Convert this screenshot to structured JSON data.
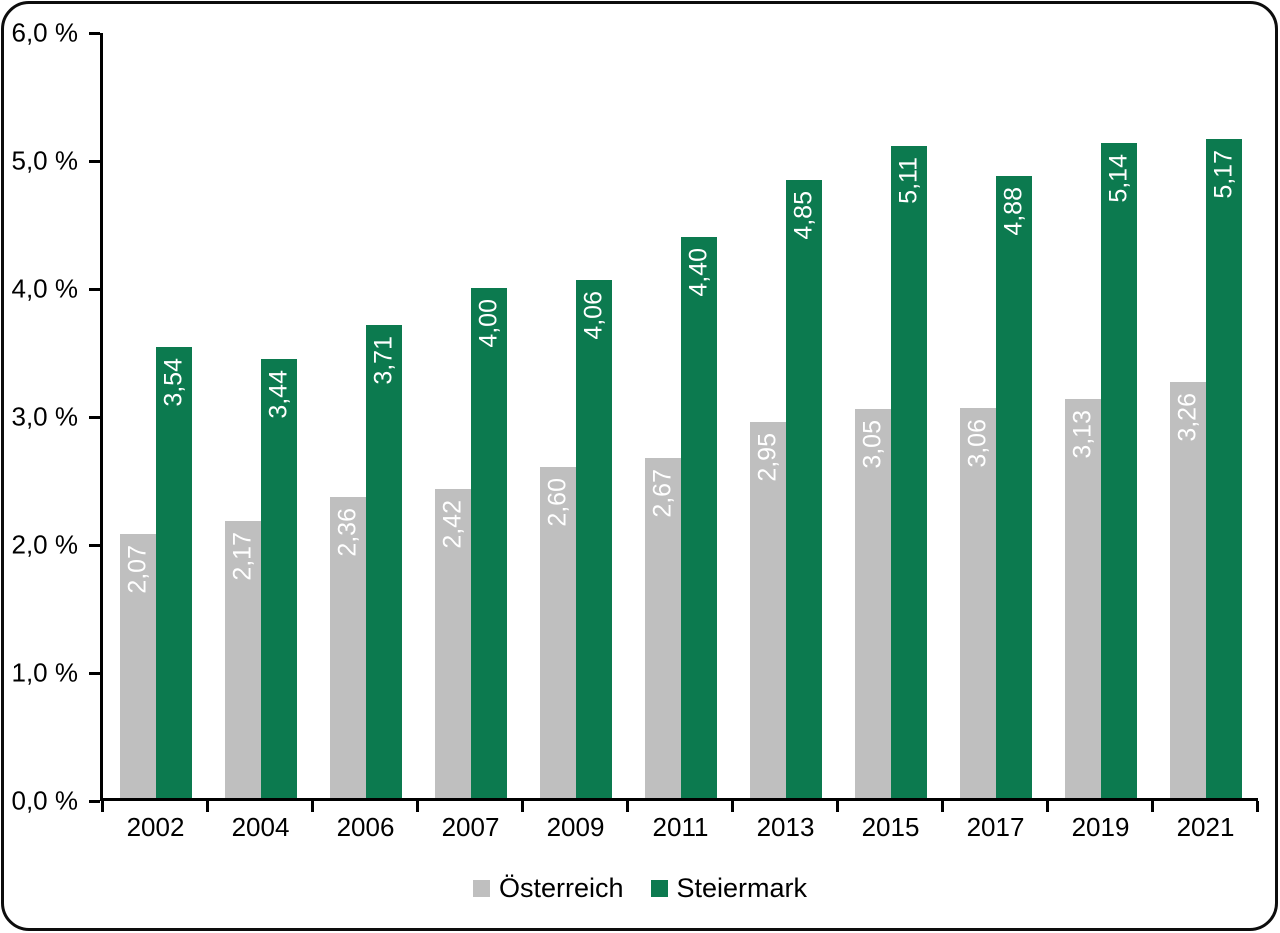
{
  "chart_data": {
    "type": "bar",
    "title": "",
    "xlabel": "",
    "ylabel": "",
    "categories": [
      "2002",
      "2004",
      "2006",
      "2007",
      "2009",
      "2011",
      "2013",
      "2015",
      "2017",
      "2019",
      "2021"
    ],
    "series": [
      {
        "name": "Österreich",
        "color": "#bfbfbf",
        "values": [
          2.07,
          2.17,
          2.36,
          2.42,
          2.6,
          2.67,
          2.95,
          3.05,
          3.06,
          3.13,
          3.26
        ]
      },
      {
        "name": "Steiermark",
        "color": "#0c7a4f",
        "values": [
          3.54,
          3.44,
          3.71,
          4.0,
          4.06,
          4.4,
          4.85,
          5.11,
          4.88,
          5.14,
          5.17
        ]
      }
    ],
    "value_labels": [
      [
        "2,07",
        "2,17",
        "2,36",
        "2,42",
        "2,60",
        "2,67",
        "2,95",
        "3,05",
        "3,06",
        "3,13",
        "3,26"
      ],
      [
        "3,54",
        "3,44",
        "3,71",
        "4,00",
        "4,06",
        "4,40",
        "4,85",
        "5,11",
        "4,88",
        "5,14",
        "5,17"
      ]
    ],
    "ylim": [
      0,
      6
    ],
    "yticks": [
      {
        "value": 6,
        "label": "6,0 %"
      },
      {
        "value": 5,
        "label": "5,0 %"
      },
      {
        "value": 4,
        "label": "4,0 %"
      },
      {
        "value": 3,
        "label": "3,0 %"
      },
      {
        "value": 2,
        "label": "2,0 %"
      },
      {
        "value": 1,
        "label": "1,0 %"
      },
      {
        "value": 0,
        "label": "0,0 %"
      }
    ],
    "grid": false,
    "legend_position": "bottom",
    "bar_label_color": "#ffffff",
    "axis_color": "#000000"
  },
  "frame": {
    "border_color": "#0d0d0d",
    "background": "#ffffff"
  }
}
